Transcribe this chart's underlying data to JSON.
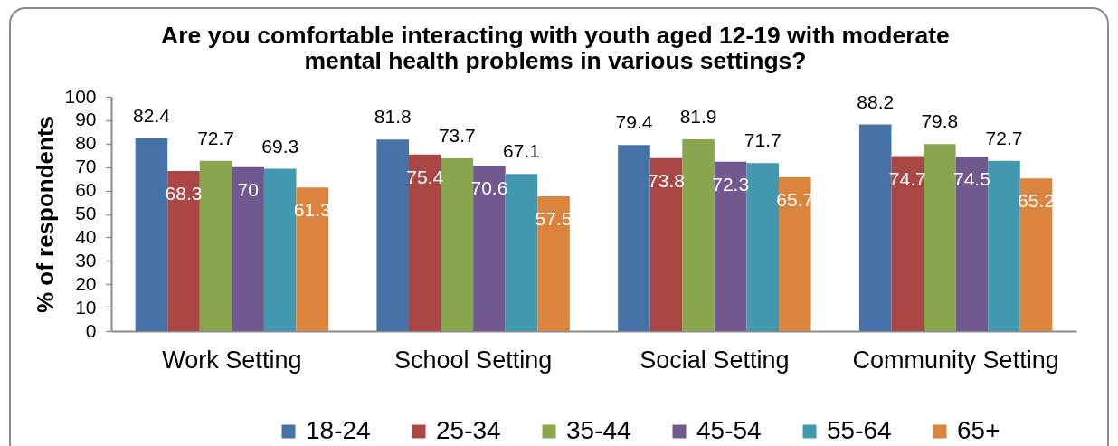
{
  "chart_data": {
    "type": "bar",
    "title": "Are you comfortable interacting with youth aged 12-19 with moderate mental health problems in various settings?",
    "ylabel": "% of respondents",
    "categories": [
      "Work Setting",
      "School Setting",
      "Social Setting",
      "Community Setting"
    ],
    "series": [
      {
        "name": "18-24",
        "color": "#4572a7",
        "values": [
          82.4,
          81.8,
          79.4,
          88.2
        ]
      },
      {
        "name": "25-34",
        "color": "#aa4643",
        "values": [
          68.3,
          75.4,
          73.8,
          74.7
        ]
      },
      {
        "name": "35-44",
        "color": "#89a54e",
        "values": [
          72.7,
          73.7,
          81.9,
          79.8
        ]
      },
      {
        "name": "45-54",
        "color": "#71588f",
        "values": [
          70,
          70.6,
          72.3,
          74.5
        ]
      },
      {
        "name": "55-64",
        "color": "#4198af",
        "values": [
          69.3,
          67.1,
          71.7,
          72.7
        ]
      },
      {
        "name": "65+",
        "color": "#db843d",
        "values": [
          61.3,
          57.5,
          65.7,
          65.2
        ]
      }
    ],
    "ylim": [
      0,
      100
    ],
    "yticks": [
      0,
      10,
      20,
      30,
      40,
      50,
      60,
      70,
      80,
      90,
      100
    ],
    "data_labels": true,
    "legend": "bottom",
    "grid": false
  }
}
